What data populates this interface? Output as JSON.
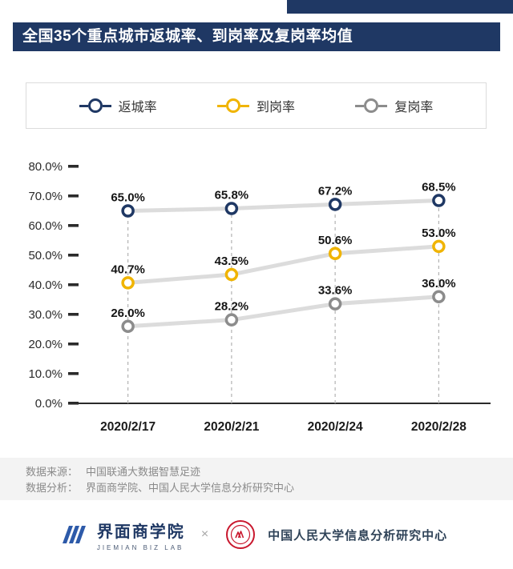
{
  "title": "全国35个重点城市返城率、到岗率及复岗率均值",
  "legend": [
    {
      "label": "返城率",
      "color": "#1f3864"
    },
    {
      "label": "到岗率",
      "color": "#f0b400"
    },
    {
      "label": "复岗率",
      "color": "#8c8c8c"
    }
  ],
  "chart_data": {
    "type": "line",
    "title": "全国35个重点城市返城率、到岗率及复岗率均值",
    "categories": [
      "2020/2/17",
      "2020/2/21",
      "2020/2/24",
      "2020/2/28"
    ],
    "series": [
      {
        "name": "返城率",
        "color": "#1f3864",
        "values": [
          65.0,
          65.8,
          67.2,
          68.5
        ]
      },
      {
        "name": "到岗率",
        "color": "#f0b400",
        "values": [
          40.7,
          43.5,
          50.6,
          53.0
        ]
      },
      {
        "name": "复岗率",
        "color": "#8c8c8c",
        "values": [
          26.0,
          28.2,
          33.6,
          36.0
        ]
      }
    ],
    "ylim": [
      0,
      80
    ],
    "ytick_step": 10,
    "ytick_labels": [
      "0.0%",
      "10.0%",
      "20.0%",
      "30.0%",
      "40.0%",
      "50.0%",
      "60.0%",
      "70.0%",
      "80.0%"
    ],
    "grid": false,
    "legend_position": "top",
    "line_color": "#dcdcdc",
    "value_suffix": "%"
  },
  "source": {
    "line1_label": "数据来源：",
    "line1_value": "中国联通大数据智慧足迹",
    "line2_label": "数据分析：",
    "line2_value": "界面商学院、中国人民大学信息分析研究中心"
  },
  "footer": {
    "jiemian_name": "界面商学院",
    "jiemian_sub": "JIEMIAN BIZ LAB",
    "separator": "×",
    "ruc_name": "中国人民大学信息分析研究中心"
  },
  "colors": {
    "navy": "#1f3864",
    "yellow": "#f0b400",
    "gray": "#8c8c8c",
    "seal_red": "#c9182e",
    "line_gray": "#dcdcdc"
  }
}
